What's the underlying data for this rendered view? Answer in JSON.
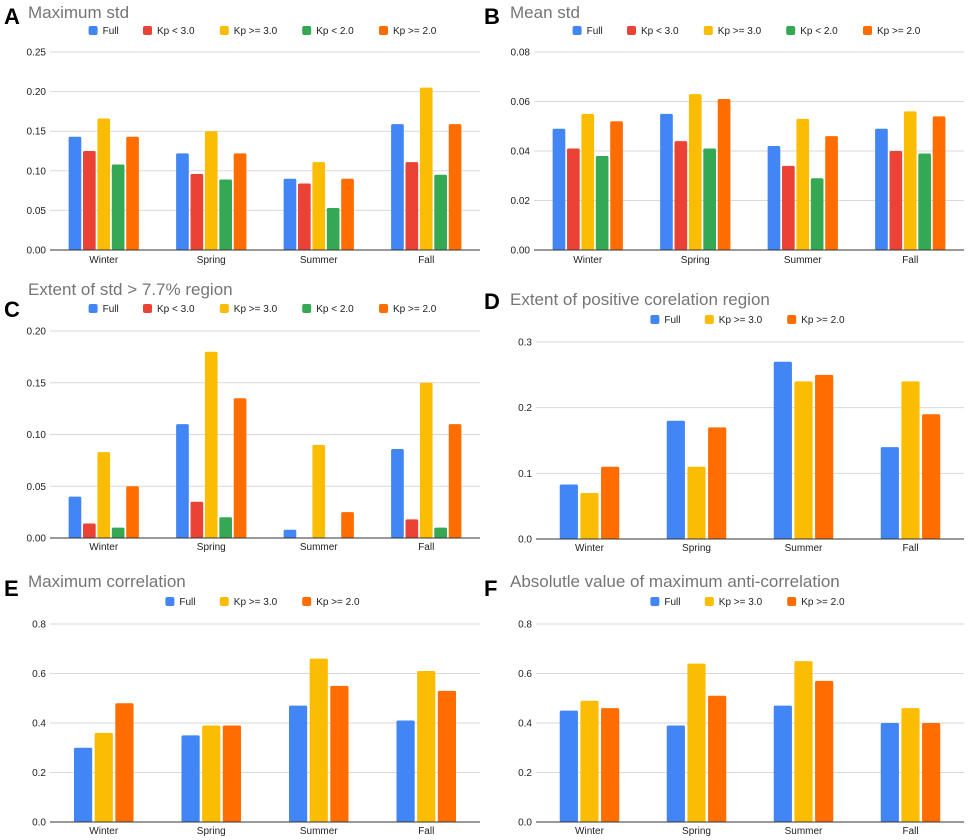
{
  "colors": {
    "Full": "#4285f4",
    "Kp < 3.0": "#ea4335",
    "Kp >= 3.0": "#fbbc04",
    "Kp < 2.0": "#34a853",
    "Kp >= 2.0": "#ff6d01"
  },
  "chart_data": [
    {
      "id": "A",
      "type": "bar",
      "title": "Maximum std",
      "categories": [
        "Winter",
        "Spring",
        "Summer",
        "Fall"
      ],
      "ylim": [
        0,
        0.25
      ],
      "yticks": [
        "0.00",
        "0.05",
        "0.10",
        "0.15",
        "0.20",
        "0.25"
      ],
      "legend_position": "top",
      "series": [
        {
          "name": "Full",
          "values": [
            0.143,
            0.122,
            0.09,
            0.159
          ]
        },
        {
          "name": "Kp < 3.0",
          "values": [
            0.125,
            0.096,
            0.084,
            0.111
          ]
        },
        {
          "name": "Kp >= 3.0",
          "values": [
            0.166,
            0.15,
            0.111,
            0.205
          ]
        },
        {
          "name": "Kp < 2.0",
          "values": [
            0.108,
            0.089,
            0.053,
            0.095
          ]
        },
        {
          "name": "Kp >= 2.0",
          "values": [
            0.143,
            0.122,
            0.09,
            0.159
          ]
        }
      ]
    },
    {
      "id": "B",
      "type": "bar",
      "title": "Mean std",
      "categories": [
        "Winter",
        "Spring",
        "Summer",
        "Fall"
      ],
      "ylim": [
        0,
        0.08
      ],
      "yticks": [
        "0.00",
        "0.02",
        "0.04",
        "0.06",
        "0.08"
      ],
      "legend_position": "top",
      "series": [
        {
          "name": "Full",
          "values": [
            0.049,
            0.055,
            0.042,
            0.049
          ]
        },
        {
          "name": "Kp < 3.0",
          "values": [
            0.041,
            0.044,
            0.034,
            0.04
          ]
        },
        {
          "name": "Kp >= 3.0",
          "values": [
            0.055,
            0.063,
            0.053,
            0.056
          ]
        },
        {
          "name": "Kp < 2.0",
          "values": [
            0.038,
            0.041,
            0.029,
            0.039
          ]
        },
        {
          "name": "Kp >= 2.0",
          "values": [
            0.052,
            0.061,
            0.046,
            0.054
          ]
        }
      ]
    },
    {
      "id": "C",
      "type": "bar",
      "title": "Extent of std > 7.7% region",
      "categories": [
        "Winter",
        "Spring",
        "Summer",
        "Fall"
      ],
      "ylim": [
        0,
        0.2
      ],
      "yticks": [
        "0.00",
        "0.05",
        "0.10",
        "0.15",
        "0.20"
      ],
      "legend_position": "top",
      "series": [
        {
          "name": "Full",
          "values": [
            0.04,
            0.11,
            0.008,
            0.086
          ]
        },
        {
          "name": "Kp < 3.0",
          "values": [
            0.014,
            0.035,
            0.0,
            0.018
          ]
        },
        {
          "name": "Kp >= 3.0",
          "values": [
            0.083,
            0.18,
            0.09,
            0.15
          ]
        },
        {
          "name": "Kp < 2.0",
          "values": [
            0.01,
            0.02,
            0.0,
            0.01
          ]
        },
        {
          "name": "Kp >= 2.0",
          "values": [
            0.05,
            0.135,
            0.025,
            0.11
          ]
        }
      ]
    },
    {
      "id": "D",
      "type": "bar",
      "title": "Extent of positive corelation region",
      "categories": [
        "Winter",
        "Spring",
        "Summer",
        "Fall"
      ],
      "ylim": [
        0,
        0.3
      ],
      "yticks": [
        "0.0",
        "0.1",
        "0.2",
        "0.3"
      ],
      "legend_position": "top",
      "series": [
        {
          "name": "Full",
          "values": [
            0.083,
            0.18,
            0.27,
            0.14
          ]
        },
        {
          "name": "Kp >= 3.0",
          "values": [
            0.07,
            0.11,
            0.24,
            0.24
          ]
        },
        {
          "name": "Kp >= 2.0",
          "values": [
            0.11,
            0.17,
            0.25,
            0.19
          ]
        }
      ]
    },
    {
      "id": "E",
      "type": "bar",
      "title": "Maximum correlation",
      "categories": [
        "Winter",
        "Spring",
        "Summer",
        "Fall"
      ],
      "ylim": [
        0,
        0.8
      ],
      "yticks": [
        "0.0",
        "0.2",
        "0.4",
        "0.6",
        "0.8"
      ],
      "legend_position": "top",
      "series": [
        {
          "name": "Full",
          "values": [
            0.3,
            0.35,
            0.47,
            0.41
          ]
        },
        {
          "name": "Kp >= 3.0",
          "values": [
            0.36,
            0.39,
            0.66,
            0.61
          ]
        },
        {
          "name": "Kp >= 2.0",
          "values": [
            0.48,
            0.39,
            0.55,
            0.53
          ]
        }
      ]
    },
    {
      "id": "F",
      "type": "bar",
      "title": "Absolutle value of maximum anti-correlation",
      "categories": [
        "Winter",
        "Spring",
        "Summer",
        "Fall"
      ],
      "ylim": [
        0,
        0.8
      ],
      "yticks": [
        "0.0",
        "0.2",
        "0.4",
        "0.6",
        "0.8"
      ],
      "legend_position": "top",
      "series": [
        {
          "name": "Full",
          "values": [
            0.45,
            0.39,
            0.47,
            0.4
          ]
        },
        {
          "name": "Kp >= 3.0",
          "values": [
            0.49,
            0.64,
            0.65,
            0.46
          ]
        },
        {
          "name": "Kp >= 2.0",
          "values": [
            0.46,
            0.51,
            0.57,
            0.4
          ]
        }
      ]
    }
  ]
}
